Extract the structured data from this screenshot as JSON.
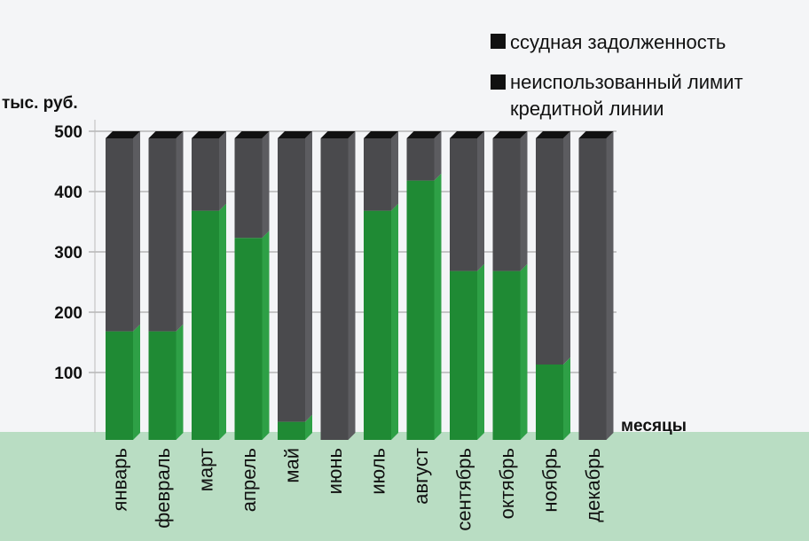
{
  "chart_data": {
    "type": "bar",
    "stacked": true,
    "ylabel": "тыс. руб.",
    "xlabel": "месяцы",
    "ylim": [
      0,
      500
    ],
    "yticks": [
      100,
      200,
      300,
      400,
      500
    ],
    "grid": true,
    "legend_position": "top-right",
    "categories": [
      "январь",
      "февраль",
      "март",
      "апрель",
      "май",
      "июнь",
      "июль",
      "август",
      "сентябрь",
      "октябрь",
      "ноябрь",
      "декабрь"
    ],
    "series": [
      {
        "name": "ссудная задолженность",
        "color": "#1f8a34",
        "values": [
          180,
          180,
          380,
          335,
          30,
          0,
          380,
          430,
          280,
          280,
          125,
          0
        ]
      },
      {
        "name": "неиспользованный лимит кредитной линии",
        "color": "#4a4a4d",
        "values": [
          320,
          320,
          120,
          165,
          470,
          500,
          120,
          70,
          220,
          220,
          375,
          500
        ]
      }
    ],
    "legend": [
      {
        "label": "ссудная задолженность"
      },
      {
        "label_line1": "неиспользованный лимит",
        "label_line2": "кредитной линии"
      }
    ]
  }
}
